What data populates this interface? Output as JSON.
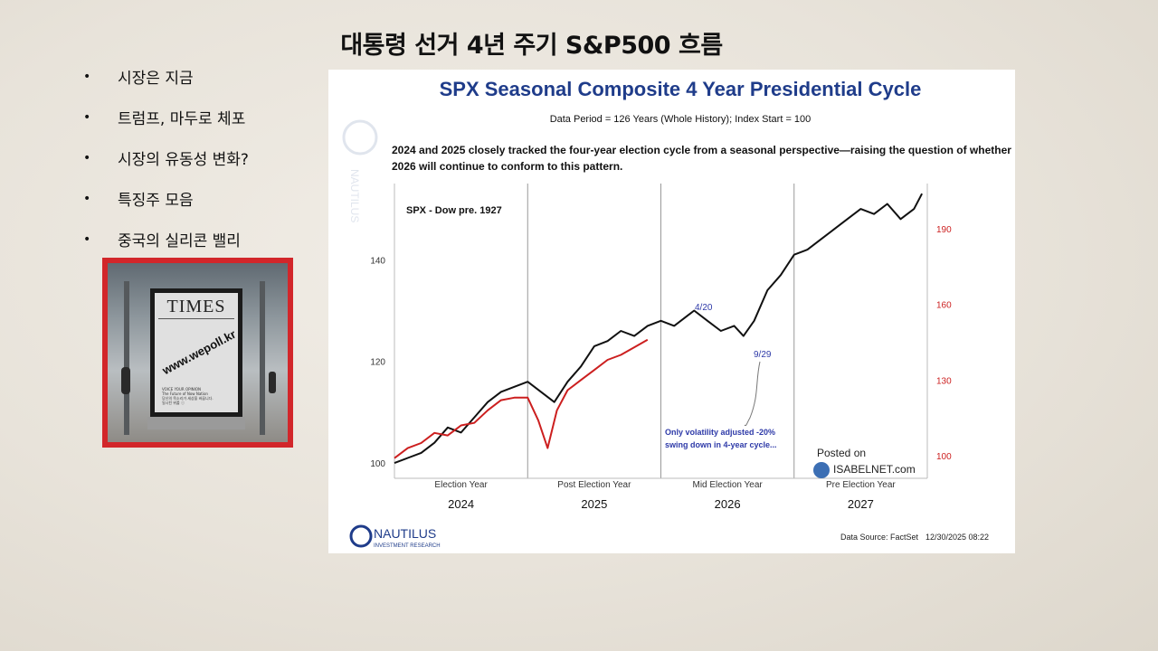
{
  "slide": {
    "title": "대통령 선거 4년 주기 S&P500 흐름",
    "bullets": [
      "시장은 지금",
      "트럼프, 마두로 체포",
      "시장의 유동성 변화?",
      "특징주 모음",
      "중국의 실리콘 밸리"
    ],
    "poster": {
      "masthead": "TIMES",
      "url_text": "www.wepoll.kr",
      "small_lines": [
        "VOICE YOUR OPINION",
        "The Future of Now Nation",
        "당신의 목소리가 세상을 바꿉니다.",
        "일시된 위폴 ⓘ"
      ]
    }
  },
  "chart_data": {
    "type": "line",
    "title": "SPX Seasonal Composite 4 Year Presidential Cycle",
    "subtitle": "Data Period = 126 Years (Whole History); Index Start = 100",
    "description": "2024 and 2025 closely tracked the four-year election cycle from a seasonal perspective—raising the question of whether 2026 will continue to conform to this pattern.",
    "inner_label": "SPX - Dow pre. 1927",
    "left_axis": {
      "ticks": [
        100,
        120,
        140
      ],
      "ylim": [
        97,
        155
      ]
    },
    "right_axis": {
      "ticks": [
        100,
        130,
        160,
        190
      ],
      "ylim": [
        91,
        208
      ],
      "color": "#cc1f1f"
    },
    "x_segments": [
      {
        "label": "Election Year",
        "year": "2024"
      },
      {
        "label": "Post Election Year",
        "year": "2025"
      },
      {
        "label": "Mid Election Year",
        "year": "2026"
      },
      {
        "label": "Pre Election Year",
        "year": "2027"
      }
    ],
    "xlim": [
      0,
      4
    ],
    "series": [
      {
        "color": "#111111",
        "axis": "left",
        "x": [
          0,
          0.1,
          0.2,
          0.3,
          0.4,
          0.5,
          0.6,
          0.7,
          0.8,
          0.9,
          1.0,
          1.1,
          1.2,
          1.3,
          1.4,
          1.5,
          1.6,
          1.7,
          1.8,
          1.9,
          2.0,
          2.1,
          2.2,
          2.25,
          2.35,
          2.45,
          2.55,
          2.62,
          2.7,
          2.8,
          2.9,
          3.0,
          3.1,
          3.2,
          3.3,
          3.4,
          3.5,
          3.6,
          3.7,
          3.8,
          3.9,
          3.96
        ],
        "values": [
          100,
          101,
          102,
          104,
          107,
          106,
          109,
          112,
          114,
          115,
          116,
          114,
          112,
          116,
          119,
          123,
          124,
          126,
          125,
          127,
          128,
          127,
          129,
          130,
          128,
          126,
          127,
          125,
          128,
          134,
          137,
          141,
          142,
          144,
          146,
          148,
          150,
          149,
          151,
          148,
          150,
          153
        ]
      },
      {
        "color": "#cc1f1f",
        "axis": "right",
        "x": [
          0,
          0.1,
          0.2,
          0.3,
          0.4,
          0.5,
          0.6,
          0.7,
          0.8,
          0.9,
          1.0,
          1.08,
          1.15,
          1.22,
          1.3,
          1.4,
          1.5,
          1.6,
          1.7,
          1.8,
          1.9
        ],
        "values": [
          99,
          103,
          105,
          109,
          108,
          112,
          113,
          118,
          122,
          123,
          123,
          114,
          103,
          118,
          126,
          130,
          134,
          138,
          140,
          143,
          146
        ]
      }
    ],
    "annotations": [
      {
        "text": "4/20"
      },
      {
        "text": "9/29"
      },
      {
        "text": "Only volatility adjusted -20%"
      },
      {
        "text": "swing down in 4-year cycle..."
      }
    ],
    "posted_on": "Posted on",
    "posted_site": "ISABELNET.com",
    "logo_text": "NAUTILUS",
    "logo_sub": "INVESTMENT RESEARCH",
    "source_text": "Data Source: FactSet",
    "date_text": "12/30/2025 08:22",
    "grid": false
  }
}
